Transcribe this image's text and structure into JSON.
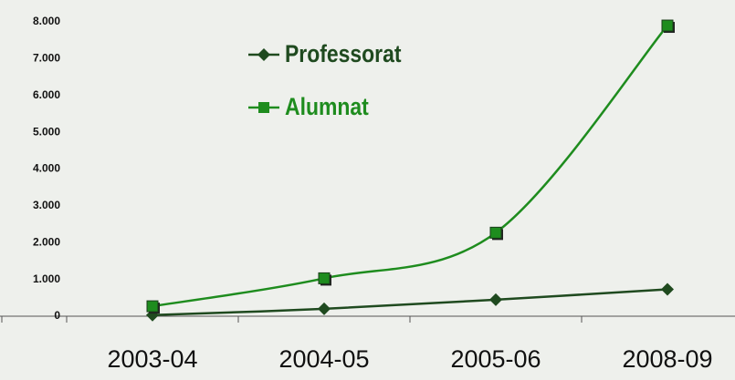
{
  "chart_data": {
    "type": "line",
    "categories": [
      "2003-04",
      "2004-05",
      "2005-06",
      "2008-09"
    ],
    "series": [
      {
        "name": "Professorat",
        "color": "#1f4a1f",
        "marker": "diamond",
        "values": [
          30,
          200,
          450,
          730
        ]
      },
      {
        "name": "Alumnat",
        "color": "#1e8c1e",
        "marker": "square",
        "values": [
          270,
          1030,
          2270,
          7900
        ]
      }
    ],
    "ylim": [
      0,
      8000
    ],
    "yticks": [
      0,
      {
        "value": 1000,
        "label": "1.000"
      },
      {
        "value": 2000,
        "label": "2.000"
      },
      {
        "value": 3000,
        "label": "3.000"
      },
      {
        "value": 4000,
        "label": "4.000"
      },
      {
        "value": 5000,
        "label": "5.000"
      },
      {
        "value": 6000,
        "label": "6.000"
      },
      {
        "value": 7000,
        "label": "7.000"
      },
      {
        "value": 8000,
        "label": "8.000"
      }
    ],
    "smooth": true,
    "grid": false,
    "legend": "top"
  }
}
